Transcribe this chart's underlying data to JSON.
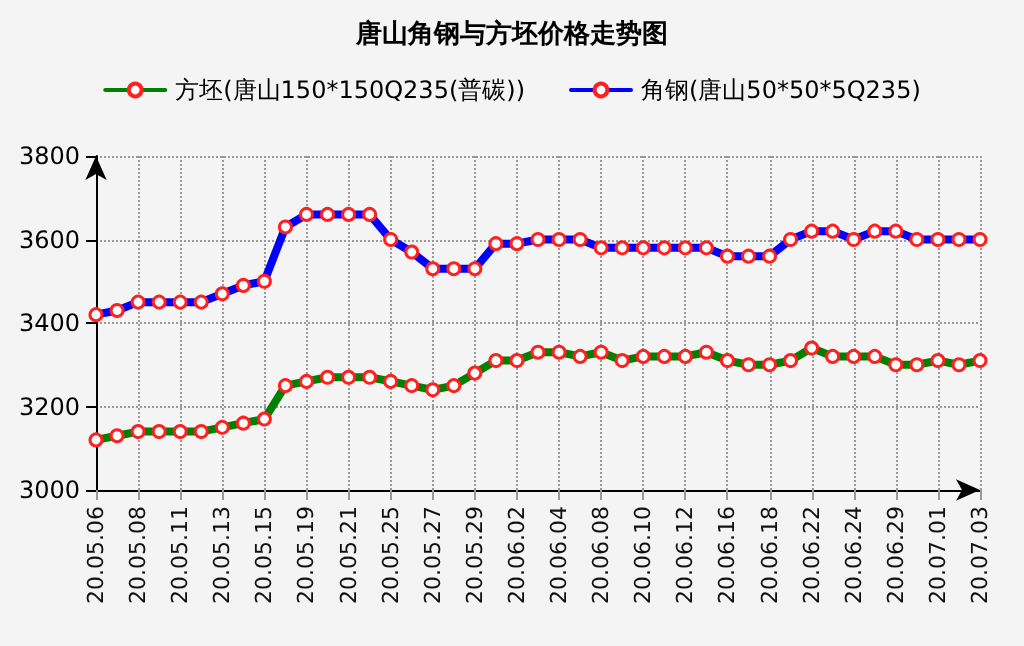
{
  "chart_data": {
    "type": "line",
    "title": "唐山角钢与方坯价格走势图",
    "categories": [
      "20.05.06",
      null,
      "20.05.08",
      null,
      "20.05.11",
      null,
      "20.05.13",
      null,
      "20.05.15",
      null,
      "20.05.19",
      null,
      "20.05.21",
      null,
      "20.05.25",
      null,
      "20.05.27",
      null,
      "20.05.29",
      null,
      "20.06.02",
      null,
      "20.06.04",
      null,
      "20.06.08",
      null,
      "20.06.10",
      null,
      "20.06.12",
      null,
      "20.06.16",
      null,
      "20.06.18",
      null,
      "20.06.22",
      null,
      "20.06.24",
      null,
      "20.06.29",
      null,
      "20.07.01",
      null,
      "20.07.03"
    ],
    "series": [
      {
        "name": "方坯(唐山150*150Q235(普碳))",
        "color": "#008000",
        "values": [
          3120,
          3130,
          3140,
          3140,
          3140,
          3140,
          3150,
          3160,
          3170,
          3250,
          3260,
          3270,
          3270,
          3270,
          3260,
          3250,
          3240,
          3250,
          3280,
          3310,
          3310,
          3330,
          3330,
          3320,
          3330,
          3310,
          3320,
          3320,
          3320,
          3330,
          3310,
          3300,
          3300,
          3310,
          3340,
          3320,
          3320,
          3320,
          3300,
          3300,
          3310,
          3300,
          3310
        ]
      },
      {
        "name": "角钢(唐山50*50*5Q235)",
        "color": "#0000ff",
        "values": [
          3420,
          3430,
          3450,
          3450,
          3450,
          3450,
          3470,
          3490,
          3500,
          3630,
          3660,
          3660,
          3660,
          3660,
          3600,
          3570,
          3530,
          3530,
          3530,
          3590,
          3590,
          3600,
          3600,
          3600,
          3580,
          3580,
          3580,
          3580,
          3580,
          3580,
          3560,
          3560,
          3560,
          3600,
          3620,
          3620,
          3600,
          3620,
          3620,
          3600,
          3600,
          3600,
          3600
        ]
      }
    ],
    "ylim": [
      3000,
      3800
    ],
    "yticks": [
      3000,
      3200,
      3400,
      3600,
      3800
    ],
    "grid": true,
    "legend": "top",
    "marker": "circle",
    "line_style": "solid"
  }
}
